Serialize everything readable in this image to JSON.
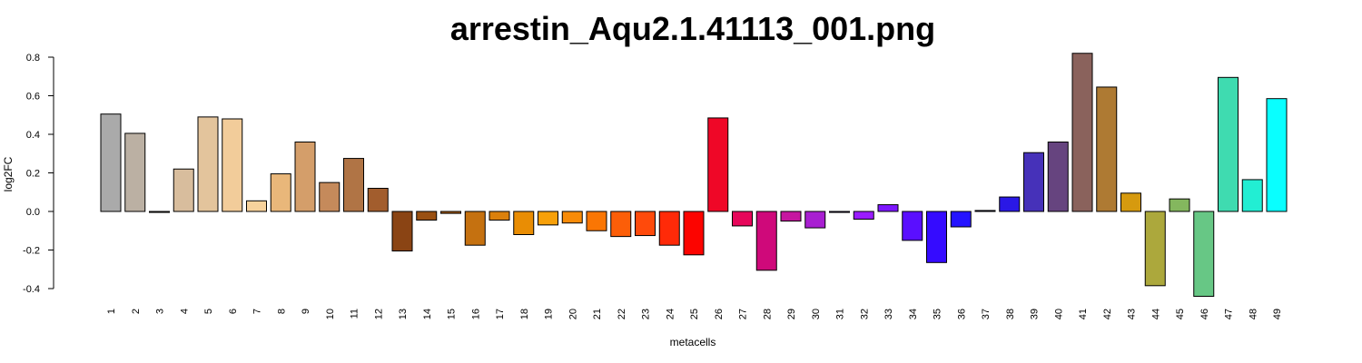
{
  "chart_data": {
    "type": "bar",
    "title": "arrestin_Aqu2.1.41113_001.png",
    "xlabel": "metacells",
    "ylabel": "log2FC",
    "ylim": [
      -0.4,
      0.8
    ],
    "yticks": [
      "-0.4",
      "-0.2",
      "0.0",
      "0.2",
      "0.4",
      "0.6",
      "0.8"
    ],
    "grid": false,
    "legend": "none",
    "categories": [
      "1",
      "2",
      "3",
      "4",
      "5",
      "6",
      "7",
      "8",
      "9",
      "10",
      "11",
      "12",
      "13",
      "14",
      "15",
      "16",
      "17",
      "18",
      "19",
      "20",
      "21",
      "22",
      "23",
      "24",
      "25",
      "26",
      "27",
      "28",
      "29",
      "30",
      "31",
      "32",
      "33",
      "34",
      "35",
      "36",
      "37",
      "38",
      "39",
      "40",
      "41",
      "42",
      "43",
      "44",
      "45",
      "46",
      "47",
      "48",
      "49"
    ],
    "values": [
      0.505,
      0.405,
      -0.005,
      0.22,
      0.49,
      0.48,
      0.055,
      0.195,
      0.36,
      0.15,
      0.275,
      0.12,
      -0.205,
      -0.045,
      -0.01,
      -0.175,
      -0.045,
      -0.12,
      -0.07,
      -0.06,
      -0.1,
      -0.13,
      -0.125,
      -0.175,
      -0.225,
      0.485,
      -0.075,
      -0.305,
      -0.05,
      -0.085,
      -0.005,
      -0.04,
      0.035,
      -0.15,
      -0.265,
      -0.08,
      0.005,
      0.075,
      0.305,
      0.36,
      0.82,
      0.645,
      0.095,
      -0.385,
      0.065,
      -0.44,
      0.695,
      0.165,
      0.585
    ],
    "colors": [
      "#aaaaaa",
      "#bbb0a3",
      "#c8b59c",
      "#d8bd9d",
      "#e3c49c",
      "#f2cc9a",
      "#f7d29c",
      "#e9b77a",
      "#d49e6a",
      "#c58a5b",
      "#b07445",
      "#a25d2d",
      "#8a4414",
      "#9a5012",
      "#b06010",
      "#c57110",
      "#db800b",
      "#e98d04",
      "#f7a009",
      "#f88b08",
      "#fa7604",
      "#fc5e08",
      "#ff4a0b",
      "#ff2a08",
      "#fc0400",
      "#ef0727",
      "#e7065a",
      "#cf097a",
      "#c616a0",
      "#a81fd1",
      "#8e22f0",
      "#9a1cff",
      "#7d17ff",
      "#5a0fff",
      "#350bff",
      "#2413ff",
      "#000e87",
      "#2a18e6",
      "#4631b9",
      "#66447f",
      "#8a625c",
      "#ae7a33",
      "#d69a0f",
      "#aca83c",
      "#84b75e",
      "#67c785",
      "#3fdbb0",
      "#22eed3",
      "#09ffff"
    ]
  }
}
